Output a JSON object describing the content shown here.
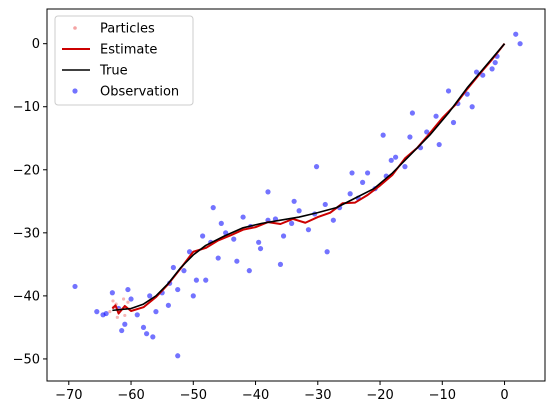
{
  "chart_data": {
    "type": "scatter",
    "title": "",
    "xlabel": "",
    "ylabel": "",
    "xlim": [
      -73.5,
      6.5
    ],
    "ylim": [
      -53.5,
      5.5
    ],
    "grid": false,
    "legend_position": "upper-left",
    "x_ticks": [
      -70,
      -60,
      -50,
      -40,
      -30,
      -20,
      -10,
      0
    ],
    "y_ticks": [
      0,
      -10,
      -20,
      -30,
      -40,
      -50
    ],
    "x_tick_labels": [
      "−70",
      "−60",
      "−50",
      "−40",
      "−30",
      "−20",
      "−10",
      "0"
    ],
    "y_tick_labels": [
      "0",
      "−10",
      "−20",
      "−30",
      "−40",
      "−50"
    ],
    "legend": [
      {
        "label": "Particles",
        "kind": "dots"
      },
      {
        "label": "Estimate",
        "kind": "line"
      },
      {
        "label": "True",
        "kind": "line"
      },
      {
        "label": "Observation",
        "kind": "marker"
      }
    ],
    "colors": {
      "particles": "#f4a3a3",
      "estimate": "#cc0000",
      "true": "#000000",
      "observation": "#0000ff"
    },
    "series": [
      {
        "name": "True",
        "x": [
          0,
          -3,
          -6,
          -9,
          -12,
          -15,
          -18,
          -21,
          -24,
          -27,
          -30,
          -33,
          -36,
          -39,
          -42,
          -45,
          -48,
          -50,
          -52,
          -54,
          -56,
          -58,
          -60,
          -62,
          -63
        ],
        "y": [
          0,
          -3.5,
          -7,
          -11,
          -14.5,
          -17.5,
          -20.5,
          -23,
          -24.5,
          -26,
          -26.8,
          -27.5,
          -28,
          -28.5,
          -29.2,
          -30.5,
          -32,
          -33.5,
          -35.5,
          -38,
          -40,
          -41.3,
          -42,
          -42.2,
          -42.3
        ]
      },
      {
        "name": "Estimate",
        "x": [
          0,
          -2,
          -4,
          -6,
          -8,
          -10,
          -12,
          -14,
          -16,
          -18,
          -20,
          -22,
          -24,
          -26,
          -28,
          -30,
          -32,
          -34,
          -36,
          -38,
          -40,
          -42,
          -44,
          -46,
          -48,
          -50,
          -52,
          -54,
          -56,
          -58,
          -60,
          -61,
          -62,
          -62.5,
          -63
        ],
        "y": [
          0,
          -2.5,
          -4.8,
          -7.2,
          -9.8,
          -11.8,
          -14.2,
          -16.5,
          -18.2,
          -20.8,
          -22.5,
          -24.0,
          -25.2,
          -25.3,
          -26.8,
          -27.5,
          -28.4,
          -27.8,
          -28.6,
          -28.3,
          -29.1,
          -29.5,
          -30.4,
          -31.2,
          -32.4,
          -33.0,
          -35.6,
          -38.1,
          -40.2,
          -41.8,
          -42.4,
          -41.6,
          -42.8,
          -41.5,
          -42.0
        ]
      },
      {
        "name": "Observation",
        "x": [
          2.5,
          1.8,
          -1.2,
          -3.5,
          -2.0,
          -4.5,
          -6.0,
          -7.5,
          -9.0,
          -8.2,
          -11.0,
          -12.5,
          -13.5,
          -15.2,
          -16.0,
          -17.5,
          -19.0,
          -20.8,
          -22.0,
          -23.5,
          -24.8,
          -26.5,
          -27.5,
          -28.8,
          -30.5,
          -31.5,
          -33.0,
          -34.2,
          -35.5,
          -36.8,
          -38.0,
          -39.5,
          -40.8,
          -42.0,
          -43.5,
          -44.8,
          -46.0,
          -47.2,
          -48.5,
          -49.5,
          -50.6,
          -51.5,
          -52.5,
          -53.2,
          -54.0,
          -55.0,
          -56.0,
          -57.0,
          -58.0,
          -59.0,
          -60.0,
          -61.0,
          -62.0,
          -63.0,
          -64.0,
          -65.5,
          -69.0,
          -52.5,
          -45.5,
          -38.0,
          -30.2,
          -24.5,
          -14.8,
          -19.5,
          -28.5,
          -36.0,
          -41.0,
          -48.0,
          -56.5,
          -60.5,
          -1.5,
          -5.2,
          -10.5,
          -18.2,
          -22.8,
          -33.8,
          -39.2,
          -43.0,
          -46.8,
          -50.0,
          -53.8,
          -57.5,
          -61.5,
          -64.5
        ],
        "y": [
          0.0,
          1.5,
          -2.0,
          -5.0,
          -4.0,
          -4.5,
          -8.0,
          -9.5,
          -7.5,
          -12.5,
          -11.5,
          -14.0,
          -16.5,
          -14.8,
          -19.5,
          -18.0,
          -21.0,
          -23.0,
          -20.5,
          -24.5,
          -23.8,
          -26.0,
          -28.0,
          -25.5,
          -27.0,
          -29.5,
          -26.5,
          -28.5,
          -30.5,
          -27.8,
          -28.0,
          -31.5,
          -29.0,
          -27.5,
          -31.0,
          -30.0,
          -34.0,
          -31.5,
          -30.5,
          -37.5,
          -33.0,
          -36.0,
          -39.0,
          -35.5,
          -41.5,
          -39.5,
          -42.5,
          -40.0,
          -45.0,
          -43.0,
          -40.5,
          -44.5,
          -42.0,
          -39.5,
          -42.8,
          -42.5,
          -38.5,
          -49.5,
          -28.5,
          -23.5,
          -19.5,
          -20.5,
          -11.0,
          -14.5,
          -33.0,
          -35.0,
          -36.0,
          -37.5,
          -46.5,
          -39.0,
          -3.0,
          -10.0,
          -16.0,
          -18.5,
          -22.0,
          -25.0,
          -32.5,
          -34.5,
          -26.0,
          -40.0,
          -38.0,
          -46.0,
          -45.5,
          -43.0
        ]
      },
      {
        "name": "Particles",
        "x": [
          -60.5,
          -61.2,
          -61.8,
          -62.4,
          -62.9,
          -63.4,
          -61.0,
          -62.2,
          -60.8,
          -62.8
        ],
        "y": [
          -41.0,
          -40.5,
          -42.2,
          -41.3,
          -40.8,
          -42.5,
          -43.1,
          -43.4,
          -42.0,
          -41.8
        ]
      }
    ]
  }
}
